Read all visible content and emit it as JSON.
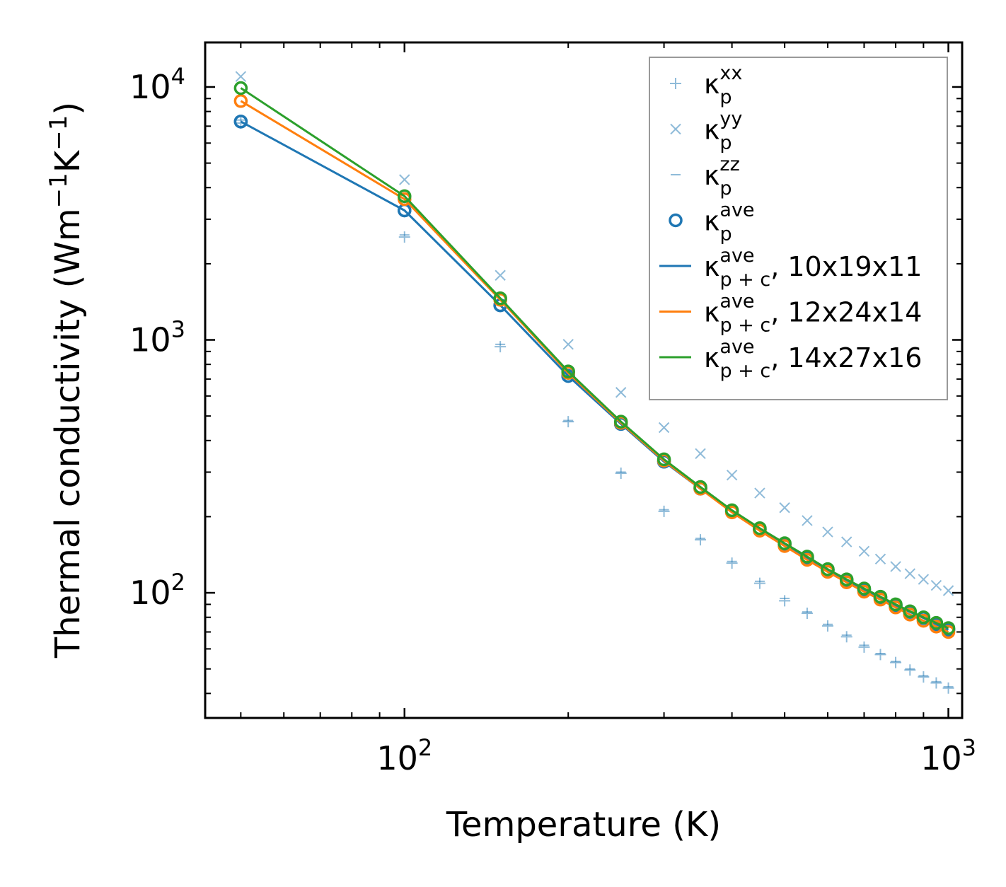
{
  "chart_data": {
    "type": "line",
    "title": "",
    "xlabel": "Temperature (K)",
    "ylabel": "Thermal conductivity (Wm⁻¹K⁻¹)",
    "ylabel_parts": {
      "prefix": "Thermal conductivity (Wm",
      "exp1": "−1",
      "mid": "K",
      "exp2": "−1",
      "suffix": ")"
    },
    "xscale": "log",
    "yscale": "log",
    "xlim": [
      43,
      1060
    ],
    "ylim": [
      32,
      15000
    ],
    "xticks": [
      {
        "value": 100,
        "base": "10",
        "exp": "2"
      },
      {
        "value": 1000,
        "base": "10",
        "exp": "3"
      }
    ],
    "yticks": [
      {
        "value": 100,
        "base": "10",
        "exp": "2"
      },
      {
        "value": 1000,
        "base": "10",
        "exp": "3"
      },
      {
        "value": 10000,
        "base": "10",
        "exp": "4"
      }
    ],
    "legend_position": "top-right",
    "x": [
      50,
      100,
      150,
      200,
      250,
      300,
      350,
      400,
      450,
      500,
      550,
      600,
      650,
      700,
      750,
      800,
      850,
      900,
      950,
      1000
    ],
    "series": [
      {
        "name": "κp^xx",
        "label": {
          "base": "κ",
          "sub": "p",
          "sup": "xx",
          "suffix": ""
        },
        "marker": "plus",
        "line": false,
        "color": "#1f77b4",
        "opacity": 0.5,
        "values": [
          7200,
          2550,
          940,
          475,
          297,
          210,
          162,
          131,
          109,
          93,
          83,
          74,
          67,
          61,
          57,
          53,
          49.5,
          46.5,
          44,
          42
        ]
      },
      {
        "name": "κp^yy",
        "label": {
          "base": "κ",
          "sub": "p",
          "sup": "yy",
          "suffix": ""
        },
        "marker": "cross",
        "line": false,
        "color": "#1f77b4",
        "opacity": 0.5,
        "values": [
          11000,
          4300,
          1800,
          960,
          620,
          450,
          355,
          292,
          248,
          217,
          193,
          174,
          159,
          146,
          136,
          127,
          119,
          113,
          107,
          102
        ]
      },
      {
        "name": "κp^zz",
        "label": {
          "base": "κ",
          "sub": "p",
          "sup": "zz",
          "suffix": ""
        },
        "marker": "dash",
        "line": false,
        "color": "#1f77b4",
        "opacity": 0.5,
        "values": [
          7400,
          2600,
          960,
          480,
          300,
          213,
          164,
          133,
          111,
          95,
          84,
          75,
          68,
          62,
          57.5,
          53.5,
          50,
          47,
          44.5,
          42.5
        ]
      },
      {
        "name": "κp^ave",
        "label": {
          "base": "κ",
          "sub": "p",
          "sup": "ave",
          "suffix": ""
        },
        "marker": "circle",
        "line": false,
        "color": "#1f77b4",
        "opacity": 1,
        "values": [
          7300,
          3250,
          1370,
          720,
          465,
          330,
          258,
          210,
          178,
          155,
          137,
          123,
          112,
          103,
          95.5,
          89,
          84,
          79.5,
          75,
          71.5
        ]
      },
      {
        "name": "κp+c^ave, 10x19x11",
        "label": {
          "base": "κ",
          "sub": "p + c",
          "sup": "ave",
          "suffix": ", 10x19x11"
        },
        "marker": "circle",
        "line": true,
        "color": "#1f77b4",
        "opacity": 1,
        "values": [
          7300,
          3250,
          1370,
          720,
          465,
          330,
          258,
          210,
          178,
          155,
          137,
          123,
          112,
          103,
          95.5,
          89,
          84,
          79.5,
          75,
          71.5
        ]
      },
      {
        "name": "κp+c^ave, 12x24x14",
        "label": {
          "base": "κ",
          "sub": "p + c",
          "sup": "ave",
          "suffix": ", 12x24x14"
        },
        "marker": "circle",
        "line": true,
        "color": "#ff7f0e",
        "opacity": 1,
        "values": [
          8800,
          3600,
          1440,
          740,
          470,
          333,
          258,
          208,
          176,
          153,
          135,
          121,
          110,
          101,
          94,
          87.5,
          82,
          77.5,
          73.5,
          70
        ]
      },
      {
        "name": "κp+c^ave, 14x27x16",
        "label": {
          "base": "κ",
          "sub": "p + c",
          "sup": "ave",
          "suffix": ", 14x27x16"
        },
        "marker": "circle",
        "line": true,
        "color": "#2ca02c",
        "opacity": 1,
        "values": [
          9900,
          3700,
          1460,
          750,
          475,
          337,
          262,
          212,
          180,
          157,
          139,
          124,
          113,
          104,
          96.5,
          90,
          84.5,
          80,
          76,
          72.5
        ]
      }
    ]
  }
}
